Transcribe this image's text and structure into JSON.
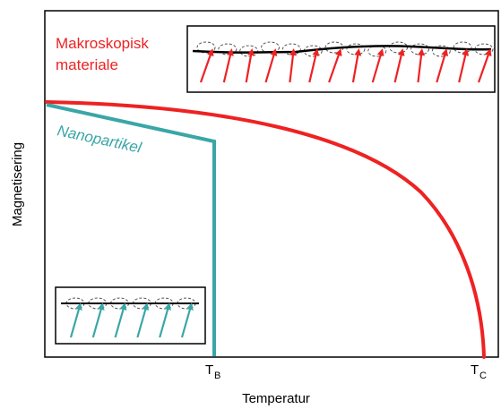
{
  "axes": {
    "ylabel": "Magnetisering",
    "xlabel": "Temperatur",
    "ticks": [
      {
        "main": "T",
        "sub": "B"
      },
      {
        "main": "T",
        "sub": "C"
      }
    ]
  },
  "curves": {
    "bulk": {
      "label": [
        "Makroskopisk",
        "materiale"
      ],
      "color": "#ee2222"
    },
    "nano": {
      "label": "Nanopartikel",
      "color": "#3aa6a6"
    }
  },
  "insets": {
    "bulk": {
      "arrow_count": 14,
      "dash_count": 14
    },
    "nano": {
      "arrow_count": 6,
      "dash_count": 6
    }
  },
  "colors": {
    "axis": "#000000",
    "dashed": "#555555"
  }
}
